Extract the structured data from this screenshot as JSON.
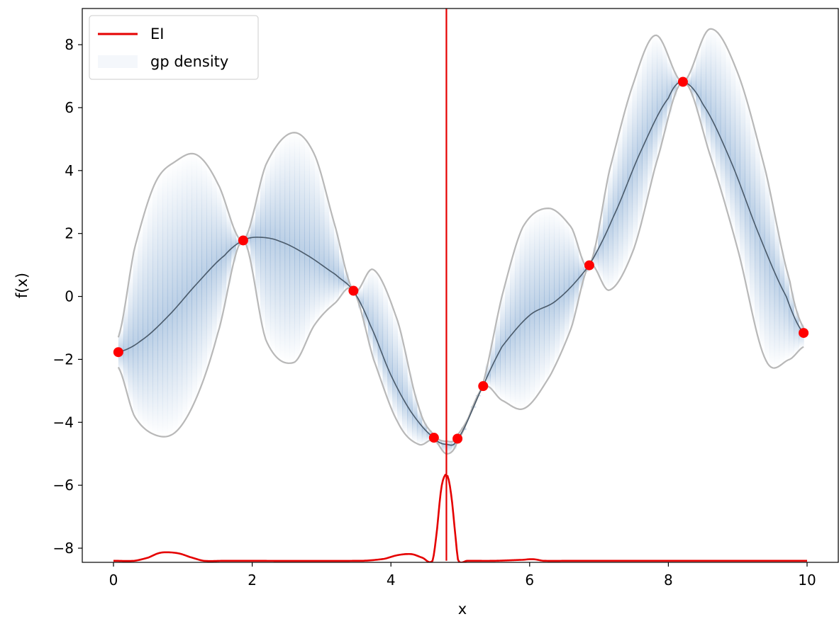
{
  "chart_data": {
    "type": "line",
    "xlabel": "x",
    "ylabel": "f(x)",
    "xlim": [
      -0.45,
      10.45
    ],
    "ylim": [
      -8.45,
      9.15
    ],
    "xticks": [
      0,
      2,
      4,
      6,
      8,
      10
    ],
    "yticks": [
      -8,
      -6,
      -4,
      -2,
      0,
      2,
      4,
      6,
      8
    ],
    "xtick_labels": [
      "0",
      "2",
      "4",
      "6",
      "8",
      "10"
    ],
    "ytick_labels": [
      "−8",
      "−6",
      "−4",
      "−2",
      "0",
      "2",
      "4",
      "6",
      "8"
    ],
    "legend": {
      "position": "upper-left",
      "entries": [
        "EI",
        "gp density"
      ]
    },
    "grid": false,
    "observations": {
      "x": [
        0.07,
        1.87,
        3.46,
        4.62,
        4.96,
        5.33,
        6.86,
        8.21,
        9.95
      ],
      "y": [
        -1.77,
        1.78,
        0.18,
        -4.49,
        -4.52,
        -2.85,
        0.99,
        6.82,
        -1.16
      ]
    },
    "gp_mean": {
      "x": [
        0.07,
        0.4,
        0.8,
        1.2,
        1.6,
        1.87,
        2.1,
        2.4,
        2.8,
        3.2,
        3.46,
        3.7,
        4.0,
        4.3,
        4.62,
        4.8,
        4.96,
        5.33,
        5.6,
        6.0,
        6.4,
        6.86,
        7.2,
        7.6,
        8.0,
        8.21,
        8.5,
        8.9,
        9.3,
        9.7,
        9.95
      ],
      "y": [
        -1.77,
        -1.4,
        -0.6,
        0.4,
        1.3,
        1.78,
        1.88,
        1.75,
        1.3,
        0.7,
        0.18,
        -0.9,
        -2.5,
        -3.7,
        -4.49,
        -4.7,
        -4.52,
        -2.85,
        -1.6,
        -0.6,
        -0.1,
        0.99,
        2.5,
        4.6,
        6.3,
        6.82,
        6.1,
        4.3,
        2.0,
        0.0,
        -1.16
      ]
    },
    "upper_bound": {
      "x": [
        0.07,
        0.3,
        0.6,
        0.9,
        1.2,
        1.5,
        1.87,
        2.2,
        2.58,
        2.9,
        3.2,
        3.46,
        3.75,
        4.1,
        4.4,
        4.62,
        4.8,
        4.96,
        5.33,
        5.6,
        5.9,
        6.27,
        6.6,
        6.86,
        7.15,
        7.5,
        7.82,
        8.21,
        8.6,
        9.0,
        9.4,
        9.75,
        9.95
      ],
      "y": [
        -1.3,
        1.5,
        3.6,
        4.3,
        4.5,
        3.6,
        1.78,
        4.2,
        5.2,
        4.5,
        2.2,
        0.18,
        0.85,
        -0.8,
        -3.5,
        -4.4,
        -4.6,
        -4.4,
        -2.75,
        0.0,
        2.2,
        2.8,
        2.2,
        0.99,
        4.0,
        6.8,
        8.3,
        6.82,
        8.5,
        7.1,
        4.0,
        0.5,
        -1.0
      ]
    },
    "lower_bound": {
      "x": [
        0.07,
        0.3,
        0.6,
        0.9,
        1.2,
        1.5,
        1.87,
        2.2,
        2.6,
        2.9,
        3.2,
        3.46,
        3.75,
        4.1,
        4.4,
        4.62,
        4.8,
        4.96,
        5.33,
        5.6,
        5.93,
        6.3,
        6.6,
        6.86,
        7.15,
        7.5,
        7.82,
        8.21,
        8.6,
        9.0,
        9.4,
        9.75,
        9.95
      ],
      "y": [
        -2.25,
        -3.8,
        -4.4,
        -4.3,
        -3.2,
        -1.2,
        1.78,
        -1.4,
        -2.1,
        -0.9,
        -0.2,
        0.18,
        -2.0,
        -4.0,
        -4.7,
        -4.55,
        -5.0,
        -4.6,
        -2.9,
        -3.3,
        -3.55,
        -2.5,
        -1.0,
        0.99,
        0.2,
        1.5,
        4.2,
        6.82,
        4.5,
        1.5,
        -2.0,
        -2.0,
        -1.6
      ]
    },
    "ei_curve": {
      "x": [
        0.0,
        0.3,
        0.5,
        0.65,
        0.78,
        0.95,
        1.1,
        1.3,
        1.6,
        3.6,
        3.9,
        4.1,
        4.3,
        4.45,
        4.6,
        4.66,
        4.72,
        4.77,
        4.8,
        4.83,
        4.88,
        4.93,
        4.97,
        5.1,
        5.5,
        5.9,
        6.05,
        6.2,
        6.6,
        10.0
      ],
      "y": [
        -8.4,
        -8.4,
        -8.3,
        -8.16,
        -8.13,
        -8.17,
        -8.28,
        -8.4,
        -8.4,
        -8.4,
        -8.34,
        -8.22,
        -8.19,
        -8.3,
        -8.4,
        -7.5,
        -6.2,
        -5.72,
        -5.7,
        -5.8,
        -6.5,
        -7.6,
        -8.4,
        -8.4,
        -8.4,
        -8.37,
        -8.35,
        -8.4,
        -8.4,
        -8.4
      ]
    },
    "ei_baseline": -8.4,
    "ei_argmax_x": 4.8,
    "colors": {
      "ei": "#e50000",
      "observations": "#ff0000",
      "mean": "#4a5a6a",
      "bounds": "#b8b8b8",
      "density": "#2a6ab0"
    }
  }
}
